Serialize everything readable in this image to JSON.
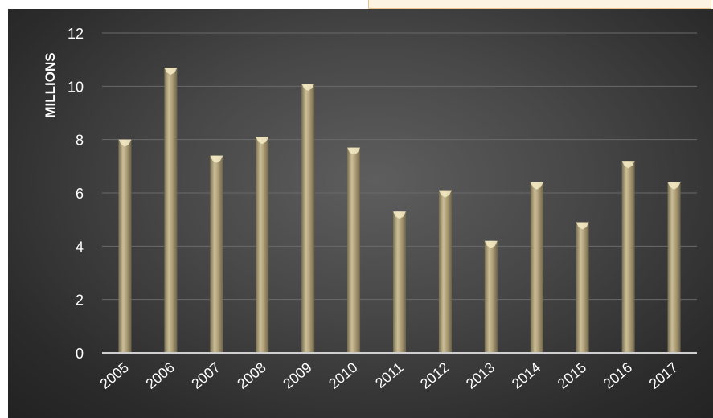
{
  "chart_data": {
    "type": "bar",
    "categories": [
      "2005",
      "2006",
      "2007",
      "2008",
      "2009",
      "2010",
      "2011",
      "2012",
      "2013",
      "2014",
      "2015",
      "2016",
      "2017"
    ],
    "series": [
      {
        "values": [
          8.0,
          10.7,
          7.4,
          8.1,
          10.1,
          7.7,
          5.3,
          6.1,
          4.2,
          6.4,
          4.9,
          7.2,
          6.4
        ]
      }
    ],
    "title": "",
    "xlabel": "",
    "ylabel": "MILLIONS",
    "ylim": [
      0,
      12
    ],
    "yticks": [
      "0",
      "2",
      "4",
      "6",
      "8",
      "10",
      "12"
    ],
    "grid": true,
    "legend": "none",
    "colors": {
      "bar": "#b0a078",
      "bar_light": "#cfc39a",
      "bar_dark": "#7d7154",
      "cap": "#f4ebc6",
      "grid": "#6a6a6a",
      "axis": "#cfcfcf",
      "text": "#ffffff"
    }
  }
}
